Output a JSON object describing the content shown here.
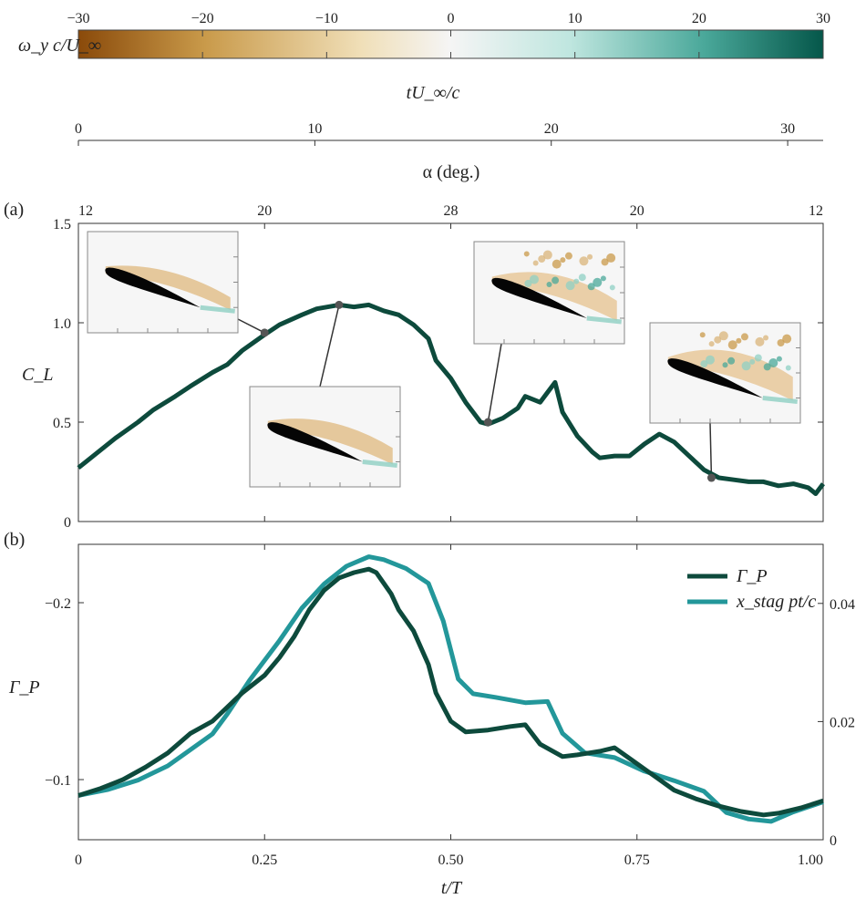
{
  "colorbar": {
    "label": "ω_y c/U_∞",
    "ticks": [
      "−30",
      "−20",
      "−10",
      "0",
      "10",
      "20",
      "30"
    ],
    "range": [
      -30,
      30
    ],
    "colors": [
      "#8a4a0a",
      "#c99a4a",
      "#f0dfb8",
      "#f5f5f5",
      "#bfe6df",
      "#4aa89a",
      "#05574a"
    ]
  },
  "time_axis": {
    "label": "tU_∞/c",
    "ticks": [
      "0",
      "10",
      "20",
      "30"
    ],
    "range": [
      0,
      31.5
    ]
  },
  "alpha_axis": {
    "label": "α (deg.)",
    "ticks": [
      "12",
      "20",
      "28",
      "20",
      "12"
    ]
  },
  "panel_a": {
    "tag": "(a)",
    "ylabel": "C_L",
    "yticks": [
      "0",
      "0.5",
      "1.0",
      "1.5"
    ]
  },
  "panel_b": {
    "tag": "(b)",
    "ylabel": "Γ_P",
    "yticks_left": [
      "−0.1",
      "−0.2"
    ],
    "yticks_right": [
      "0",
      "0.02",
      "0.04"
    ],
    "xlabel": "t/T",
    "xticks": [
      "0",
      "0.25",
      "0.50",
      "0.75",
      "1.00"
    ],
    "legend": [
      "Γ_P",
      "x_stag pt/c"
    ]
  },
  "chart_data": [
    {
      "type": "line",
      "panel": "a",
      "xlabel": "t/T",
      "ylabel": "C_L",
      "xlim": [
        0,
        1
      ],
      "ylim": [
        0,
        1.5
      ],
      "grid": false,
      "color": "#0d4a3c",
      "x": [
        0,
        0.02,
        0.05,
        0.08,
        0.1,
        0.13,
        0.15,
        0.18,
        0.2,
        0.22,
        0.25,
        0.27,
        0.3,
        0.32,
        0.35,
        0.37,
        0.39,
        0.41,
        0.43,
        0.45,
        0.47,
        0.48,
        0.5,
        0.52,
        0.54,
        0.55,
        0.57,
        0.59,
        0.6,
        0.62,
        0.64,
        0.65,
        0.67,
        0.69,
        0.7,
        0.72,
        0.74,
        0.76,
        0.78,
        0.8,
        0.82,
        0.84,
        0.86,
        0.88,
        0.9,
        0.92,
        0.94,
        0.96,
        0.98,
        0.99,
        1.0
      ],
      "y": [
        0.27,
        0.33,
        0.42,
        0.5,
        0.56,
        0.63,
        0.68,
        0.75,
        0.79,
        0.86,
        0.94,
        0.99,
        1.04,
        1.07,
        1.09,
        1.08,
        1.09,
        1.06,
        1.04,
        0.99,
        0.92,
        0.81,
        0.72,
        0.6,
        0.5,
        0.49,
        0.52,
        0.57,
        0.63,
        0.6,
        0.7,
        0.55,
        0.43,
        0.35,
        0.32,
        0.33,
        0.33,
        0.39,
        0.44,
        0.4,
        0.33,
        0.26,
        0.22,
        0.21,
        0.2,
        0.2,
        0.18,
        0.19,
        0.17,
        0.14,
        0.19
      ],
      "markers": [
        {
          "x": 0.25,
          "y": 0.95
        },
        {
          "x": 0.35,
          "y": 1.09
        },
        {
          "x": 0.55,
          "y": 0.5
        },
        {
          "x": 0.85,
          "y": 0.22
        }
      ]
    },
    {
      "type": "line",
      "panel": "b",
      "xlabel": "t/T",
      "ylabel": "Γ_P",
      "xlim": [
        0,
        1
      ],
      "ylim": [
        -0.066,
        -0.233
      ],
      "grid": false,
      "series": [
        {
          "name": "Γ_P",
          "axis": "left",
          "color": "#0d4a3c",
          "x": [
            0,
            0.03,
            0.06,
            0.09,
            0.12,
            0.15,
            0.18,
            0.2,
            0.22,
            0.25,
            0.27,
            0.29,
            0.31,
            0.33,
            0.35,
            0.37,
            0.39,
            0.4,
            0.42,
            0.43,
            0.45,
            0.47,
            0.48,
            0.5,
            0.52,
            0.55,
            0.58,
            0.6,
            0.62,
            0.65,
            0.67,
            0.7,
            0.72,
            0.74,
            0.76,
            0.78,
            0.8,
            0.83,
            0.86,
            0.89,
            0.92,
            0.94,
            0.97,
            1.0
          ],
          "y": [
            -0.091,
            -0.095,
            -0.1,
            -0.107,
            -0.115,
            -0.126,
            -0.133,
            -0.141,
            -0.149,
            -0.159,
            -0.169,
            -0.181,
            -0.196,
            -0.207,
            -0.214,
            -0.217,
            -0.219,
            -0.217,
            -0.205,
            -0.196,
            -0.184,
            -0.165,
            -0.149,
            -0.133,
            -0.127,
            -0.128,
            -0.13,
            -0.131,
            -0.12,
            -0.113,
            -0.114,
            -0.116,
            -0.118,
            -0.112,
            -0.106,
            -0.1,
            -0.094,
            -0.089,
            -0.085,
            -0.082,
            -0.08,
            -0.081,
            -0.084,
            -0.088
          ]
        },
        {
          "name": "x_stag pt/c",
          "axis": "right",
          "color": "#23979a",
          "ylim": [
            0,
            0.05
          ],
          "x": [
            0,
            0.04,
            0.08,
            0.12,
            0.15,
            0.18,
            0.2,
            0.23,
            0.27,
            0.3,
            0.33,
            0.36,
            0.39,
            0.41,
            0.44,
            0.47,
            0.49,
            0.51,
            0.53,
            0.56,
            0.6,
            0.63,
            0.65,
            0.68,
            0.72,
            0.76,
            0.8,
            0.84,
            0.87,
            0.9,
            0.93,
            0.96,
            1.0
          ],
          "y": [
            0.0075,
            0.0085,
            0.0101,
            0.0125,
            0.0152,
            0.0179,
            0.0213,
            0.027,
            0.0337,
            0.0392,
            0.0433,
            0.0463,
            0.0479,
            0.0474,
            0.0459,
            0.0434,
            0.037,
            0.0272,
            0.0247,
            0.0241,
            0.0232,
            0.0234,
            0.018,
            0.0147,
            0.0139,
            0.0116,
            0.01,
            0.0082,
            0.0046,
            0.0035,
            0.0031,
            0.0047,
            0.0064
          ]
        }
      ],
      "y2lim": [
        0,
        0.05
      ],
      "legend_position": "top-right"
    },
    {
      "type": "heatmap",
      "panel": "colorbar",
      "title": "ω_y c/U_∞",
      "range": [
        -30,
        30
      ]
    }
  ]
}
